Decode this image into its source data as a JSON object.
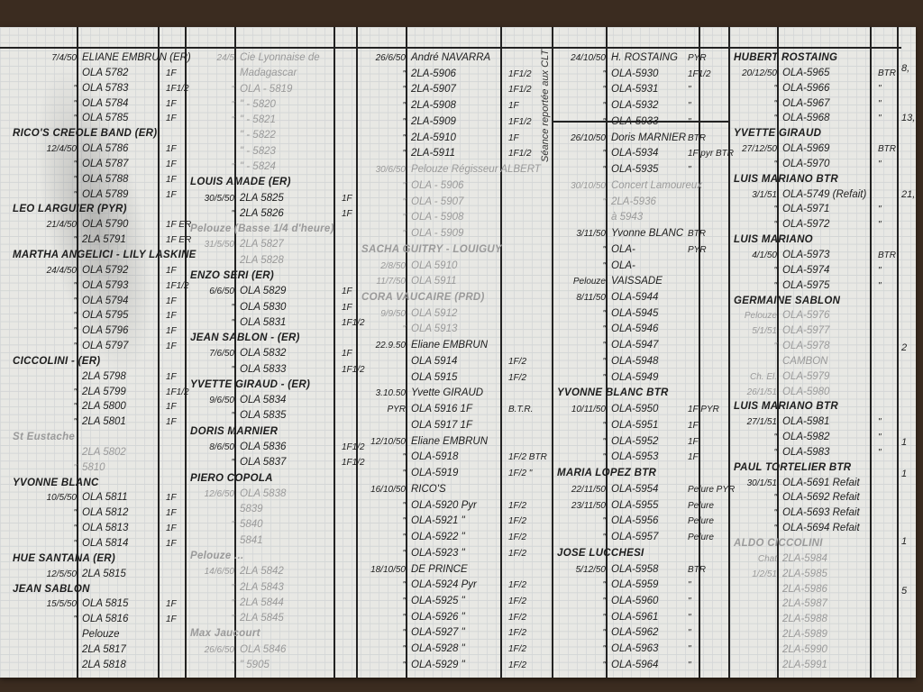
{
  "ledger": {
    "groups": [
      {
        "rows": [
          {
            "d": "7/4/50",
            "e": "ELIANE EMBRUN (ER)"
          },
          {
            "d": "",
            "e": "OLA 5782",
            "q": "1F"
          },
          {
            "d": "\"",
            "e": "OLA 5783",
            "q": "1F1/2"
          },
          {
            "d": "\"",
            "e": "OLA 5784",
            "q": "1F"
          },
          {
            "d": "\"",
            "e": "OLA 5785",
            "q": "1F"
          },
          {
            "h": "RICO'S CREOLE BAND (ER)"
          },
          {
            "d": "12/4/50",
            "e": "OLA 5786",
            "q": "1F"
          },
          {
            "d": "\"",
            "e": "OLA 5787",
            "q": "1F"
          },
          {
            "d": "\"",
            "e": "OLA 5788",
            "q": "1F"
          },
          {
            "d": "\"",
            "e": "OLA 5789",
            "q": "1F"
          },
          {
            "h": "LEO LARGUIER (PYR)"
          },
          {
            "d": "21/4/50",
            "e": "OLA 5790",
            "q": "1F ER"
          },
          {
            "d": "\"",
            "e": "2LA 5791",
            "q": "1F ER"
          },
          {
            "h": "MARTHA ANGELICI - LILY LASKINE"
          },
          {
            "d": "24/4/50",
            "e": "OLA 5792",
            "q": "1F"
          },
          {
            "d": "\"",
            "e": "OLA 5793",
            "q": "1F1/2"
          },
          {
            "d": "\"",
            "e": "OLA 5794",
            "q": "1F"
          },
          {
            "d": "\"",
            "e": "OLA 5795",
            "q": "1F"
          },
          {
            "d": "\"",
            "e": "OLA 5796",
            "q": "1F"
          },
          {
            "d": "\"",
            "e": "OLA 5797",
            "q": "1F"
          },
          {
            "h": "CICCOLINI - (ER)"
          },
          {
            "d": "",
            "e": "2LA 5798",
            "q": "1F"
          },
          {
            "d": "\"",
            "e": "2LA 5799",
            "q": "1F1/2"
          },
          {
            "d": "\"",
            "e": "2LA 5800",
            "q": "1F"
          },
          {
            "d": "\"",
            "e": "2LA 5801",
            "q": "1F"
          },
          {
            "h": "St Eustache",
            "faint": true
          },
          {
            "d": "",
            "e": "2LA 5802",
            "faint": true
          },
          {
            "d": "\"",
            "e": "5810",
            "faint": true
          },
          {
            "h": "YVONNE BLANC"
          },
          {
            "d": "10/5/50",
            "e": "OLA 5811",
            "q": "1F"
          },
          {
            "d": "\"",
            "e": "OLA 5812",
            "q": "1F"
          },
          {
            "d": "\"",
            "e": "OLA 5813",
            "q": "1F"
          },
          {
            "d": "\"",
            "e": "OLA 5814",
            "q": "1F"
          },
          {
            "h": "HUE SANTANA (ER)"
          },
          {
            "d": "12/5/50",
            "e": "2LA 5815"
          },
          {
            "h": "JEAN SABLON"
          },
          {
            "d": "15/5/50",
            "e": "OLA 5815",
            "q": "1F"
          },
          {
            "d": "\"",
            "e": "OLA 5816",
            "q": "1F"
          },
          {
            "d": "",
            "e": "Pelouze"
          },
          {
            "d": "",
            "e": "2LA 5817"
          },
          {
            "d": "",
            "e": "2LA 5818"
          }
        ]
      },
      {
        "rows": [
          {
            "d": "24/5",
            "e": "Cie Lyonnaise de",
            "faint": true
          },
          {
            "d": "",
            "e": "Madagascar",
            "faint": true
          },
          {
            "d": "\"",
            "e": "OLA - 5819",
            "faint": true
          },
          {
            "d": "\"",
            "e": "\" - 5820",
            "faint": true
          },
          {
            "d": "\"",
            "e": "\" - 5821",
            "faint": true
          },
          {
            "d": "",
            "e": "\" - 5822",
            "faint": true
          },
          {
            "d": "",
            "e": "\" - 5823",
            "faint": true
          },
          {
            "d": "\"",
            "e": "\" - 5824",
            "faint": true
          },
          {
            "h": "LOUIS AMADE (ER)"
          },
          {
            "d": "30/5/50",
            "e": "2LA 5825",
            "q": "1F"
          },
          {
            "d": "\"",
            "e": "2LA 5826",
            "q": "1F"
          },
          {
            "h": "Pelouze (Basse 1/4 d'heure)",
            "faint": true
          },
          {
            "d": "31/5/50",
            "e": "2LA 5827",
            "faint": true
          },
          {
            "d": "",
            "e": "2LA 5828",
            "faint": true
          },
          {
            "h": "ENZO SERI (ER)"
          },
          {
            "d": "6/6/50",
            "e": "OLA 5829",
            "q": "1F"
          },
          {
            "d": "\"",
            "e": "OLA 5830",
            "q": "1F"
          },
          {
            "d": "\"",
            "e": "OLA 5831",
            "q": "1F1/2"
          },
          {
            "h": "JEAN SABLON - (ER)"
          },
          {
            "d": "7/6/50",
            "e": "OLA 5832",
            "q": "1F"
          },
          {
            "d": "\"",
            "e": "OLA 5833",
            "q": "1F1/2"
          },
          {
            "h": "YVETTE GIRAUD - (ER)"
          },
          {
            "d": "9/6/50",
            "e": "OLA 5834"
          },
          {
            "d": "\"",
            "e": "OLA 5835"
          },
          {
            "h": "DORIS MARNIER"
          },
          {
            "d": "8/6/50",
            "e": "OLA 5836",
            "q": "1F1/2"
          },
          {
            "d": "\"",
            "e": "OLA 5837",
            "q": "1F1/2"
          },
          {
            "h": "PIERO COPOLA"
          },
          {
            "d": "12/6/50",
            "e": "OLA 5838",
            "faint": true
          },
          {
            "d": "",
            "e": "5839",
            "faint": true
          },
          {
            "d": "\"",
            "e": "5840",
            "faint": true
          },
          {
            "d": "",
            "e": "5841",
            "faint": true
          },
          {
            "h": "Pelouze ...",
            "faint": true
          },
          {
            "d": "14/6/50",
            "e": "2LA 5842",
            "faint": true
          },
          {
            "d": "\"",
            "e": "2LA 5843",
            "faint": true
          },
          {
            "d": "\"",
            "e": "2LA 5844",
            "faint": true
          },
          {
            "d": "\"",
            "e": "2LA 5845",
            "faint": true
          },
          {
            "h": "Max Jaucourt",
            "faint": true
          },
          {
            "d": "26/6/50",
            "e": "OLA 5846",
            "faint": true
          },
          {
            "d": "\"",
            "e": "\" 5905",
            "faint": true
          }
        ]
      },
      {
        "rows": [
          {
            "d": "26/6/50",
            "e": "André NAVARRA"
          },
          {
            "d": "\"",
            "e": "2LA-5906",
            "q": "1F1/2"
          },
          {
            "d": "\"",
            "e": "2LA-5907",
            "q": "1F1/2"
          },
          {
            "d": "\"",
            "e": "2LA-5908",
            "q": "1F"
          },
          {
            "d": "\"",
            "e": "2LA-5909",
            "q": "1F1/2"
          },
          {
            "d": "\"",
            "e": "2LA-5910",
            "q": "1F"
          },
          {
            "d": "\"",
            "e": "2LA-5911",
            "q": "1F1/2"
          },
          {
            "d": "30/6/50",
            "e": "Pelouze Régisseur ALBERT",
            "faint": true
          },
          {
            "d": "\"",
            "e": "OLA - 5906",
            "faint": true
          },
          {
            "d": "\"",
            "e": "OLA - 5907",
            "faint": true
          },
          {
            "d": "\"",
            "e": "OLA - 5908",
            "faint": true
          },
          {
            "d": "\"",
            "e": "OLA - 5909",
            "faint": true
          },
          {
            "h": "SACHA GUITRY - LOUIGUY",
            "faint": true
          },
          {
            "d": "2/8/50",
            "e": "OLA 5910",
            "faint": true
          },
          {
            "d": "11/7/50",
            "e": "OLA 5911",
            "faint": true
          },
          {
            "h": "CORA VAUCAIRE (PRD)",
            "faint": true
          },
          {
            "d": "9/9/50",
            "e": "OLA 5912",
            "faint": true
          },
          {
            "d": "\"",
            "e": "OLA 5913",
            "faint": true
          },
          {
            "d": "22.9.50",
            "e": "Eliane EMBRUN"
          },
          {
            "d": "",
            "e": "OLA 5914",
            "q": "1F/2"
          },
          {
            "d": "",
            "e": "OLA 5915",
            "q": "1F/2"
          },
          {
            "d": "3.10.50",
            "e": "Yvette GIRAUD"
          },
          {
            "d": "PYR",
            "e": "OLA 5916 1F",
            "q": "B.T.R."
          },
          {
            "d": "",
            "e": "OLA 5917 1F"
          },
          {
            "d": "12/10/50",
            "e": "Eliane EMBRUN"
          },
          {
            "d": "\"",
            "e": "OLA-5918",
            "q": "1F/2 BTR"
          },
          {
            "d": "\"",
            "e": "OLA-5919",
            "q": "1F/2 \""
          },
          {
            "d": "16/10/50",
            "e": "RICO'S"
          },
          {
            "d": "\"",
            "e": "OLA-5920 Pyr",
            "q": "1F/2"
          },
          {
            "d": "\"",
            "e": "OLA-5921 \"",
            "q": "1F/2"
          },
          {
            "d": "\"",
            "e": "OLA-5922 \"",
            "q": "1F/2"
          },
          {
            "d": "\"",
            "e": "OLA-5923 \"",
            "q": "1F/2"
          },
          {
            "d": "18/10/50",
            "e": "DE PRINCE"
          },
          {
            "d": "\"",
            "e": "OLA-5924 Pyr",
            "q": "1F/2"
          },
          {
            "d": "\"",
            "e": "OLA-5925 \"",
            "q": "1F/2"
          },
          {
            "d": "\"",
            "e": "OLA-5926 \"",
            "q": "1F/2"
          },
          {
            "d": "\"",
            "e": "OLA-5927 \"",
            "q": "1F/2"
          },
          {
            "d": "\"",
            "e": "OLA-5928 \"",
            "q": "1F/2"
          },
          {
            "d": "\"",
            "e": "OLA-5929 \"",
            "q": "1F/2"
          }
        ]
      },
      {
        "rows": [
          {
            "d": "24/10/50",
            "e": "H. ROSTAING",
            "q": "PYR"
          },
          {
            "d": "\"",
            "e": "OLA-5930",
            "q": "1F1/2"
          },
          {
            "d": "\"",
            "e": "OLA-5931",
            "q": "\""
          },
          {
            "d": "\"",
            "e": "OLA-5932",
            "q": "\""
          },
          {
            "d": "\"",
            "e": "OLA-5933",
            "q": "\""
          },
          {
            "d": "26/10/50",
            "e": "Doris MARNIER",
            "q": "BTR"
          },
          {
            "d": "\"",
            "e": "OLA-5934",
            "q": "1F pyr BTR"
          },
          {
            "d": "\"",
            "e": "OLA-5935",
            "q": "\""
          },
          {
            "d": "30/10/50",
            "e": "Concert Lamoureux",
            "faint": true
          },
          {
            "d": "\"",
            "e": "2LA-5936",
            "faint": true
          },
          {
            "d": "",
            "e": "à 5943",
            "faint": true
          },
          {
            "d": "3/11/50",
            "e": "Yvonne BLANC",
            "q": "BTR"
          },
          {
            "d": "\"",
            "e": "OLA-",
            "q": "PYR"
          },
          {
            "d": "\"",
            "e": "OLA-"
          },
          {
            "d": "Pelouze",
            "e": "VAISSADE"
          },
          {
            "d": "8/11/50",
            "e": "OLA-5944"
          },
          {
            "d": "\"",
            "e": "OLA-5945"
          },
          {
            "d": "\"",
            "e": "OLA-5946"
          },
          {
            "d": "\"",
            "e": "OLA-5947"
          },
          {
            "d": "\"",
            "e": "OLA-5948"
          },
          {
            "d": "\"",
            "e": "OLA-5949"
          },
          {
            "h": "YVONNE BLANC BTR"
          },
          {
            "d": "10/11/50",
            "e": "OLA-5950",
            "q": "1F PYR"
          },
          {
            "d": "\"",
            "e": "OLA-5951",
            "q": "1F"
          },
          {
            "d": "\"",
            "e": "OLA-5952",
            "q": "1F"
          },
          {
            "d": "\"",
            "e": "OLA-5953",
            "q": "1F"
          },
          {
            "h": "MARIA LOPEZ BTR"
          },
          {
            "d": "22/11/50",
            "e": "OLA-5954",
            "q": "Pelure PYR"
          },
          {
            "d": "23/11/50",
            "e": "OLA-5955",
            "q": "Pelure"
          },
          {
            "d": "\"",
            "e": "OLA-5956",
            "q": "Pelure"
          },
          {
            "d": "\"",
            "e": "OLA-5957",
            "q": "Pelure"
          },
          {
            "h": "JOSE LUCCHESI"
          },
          {
            "d": "5/12/50",
            "e": "OLA-5958",
            "q": "BTR"
          },
          {
            "d": "\"",
            "e": "OLA-5959",
            "q": "\""
          },
          {
            "d": "\"",
            "e": "OLA-5960",
            "q": "\""
          },
          {
            "d": "\"",
            "e": "OLA-5961",
            "q": "\""
          },
          {
            "d": "\"",
            "e": "OLA-5962",
            "q": "\""
          },
          {
            "d": "\"",
            "e": "OLA-5963",
            "q": "\""
          },
          {
            "d": "\"",
            "e": "OLA-5964",
            "q": "\""
          }
        ]
      },
      {
        "rows": [
          {
            "h": "HUBERT ROSTAING"
          },
          {
            "d": "20/12/50",
            "e": "OLA-5965",
            "q": "BTR"
          },
          {
            "d": "\"",
            "e": "OLA-5966",
            "q": "\""
          },
          {
            "d": "\"",
            "e": "OLA-5967",
            "q": "\""
          },
          {
            "d": "\"",
            "e": "OLA-5968",
            "q": "\""
          },
          {
            "h": "YVETTE GIRAUD"
          },
          {
            "d": "27/12/50",
            "e": "OLA-5969",
            "q": "BTR"
          },
          {
            "d": "\"",
            "e": "OLA-5970",
            "q": "\""
          },
          {
            "h": "LUIS MARIANO BTR"
          },
          {
            "d": "3/1/51",
            "e": "OLA-5749 (Refait)"
          },
          {
            "d": "\"",
            "e": "OLA-5971",
            "q": "\""
          },
          {
            "d": "\"",
            "e": "OLA-5972",
            "q": "\""
          },
          {
            "h": "LUIS MARIANO"
          },
          {
            "d": "4/1/50",
            "e": "OLA-5973",
            "q": "BTR"
          },
          {
            "d": "\"",
            "e": "OLA-5974",
            "q": "\""
          },
          {
            "d": "\"",
            "e": "OLA-5975",
            "q": "\""
          },
          {
            "h": "GERMAINE SABLON"
          },
          {
            "d": "Pelouze",
            "e": "OLA-5976",
            "faint": true
          },
          {
            "d": "5/1/51",
            "e": "OLA-5977",
            "faint": true
          },
          {
            "d": "\"",
            "e": "OLA-5978",
            "faint": true
          },
          {
            "d": "",
            "e": "CAMBON",
            "faint": true
          },
          {
            "d": "Ch. El.",
            "e": "OLA-5979",
            "faint": true
          },
          {
            "d": "26/1/51",
            "e": "OLA-5980",
            "faint": true
          },
          {
            "h": "LUIS MARIANO BTR"
          },
          {
            "d": "27/1/51",
            "e": "OLA-5981",
            "q": "\""
          },
          {
            "d": "\"",
            "e": "OLA-5982",
            "q": "\""
          },
          {
            "d": "\"",
            "e": "OLA-5983",
            "q": "\""
          },
          {
            "h": "PAUL TORTELIER BTR"
          },
          {
            "d": "30/1/51",
            "e": "OLA-5691 Refait"
          },
          {
            "d": "\"",
            "e": "OLA-5692 Refait"
          },
          {
            "d": "\"",
            "e": "OLA-5693 Refait"
          },
          {
            "d": "\"",
            "e": "OLA-5694 Refait"
          },
          {
            "h": "ALDO CICCOLINI",
            "faint": true
          },
          {
            "d": "Chat",
            "e": "2LA-5984",
            "faint": true
          },
          {
            "d": "1/2/51",
            "e": "2LA-5985",
            "faint": true
          },
          {
            "d": "",
            "e": "2LA-5986",
            "faint": true
          },
          {
            "d": "",
            "e": "2LA-5987",
            "faint": true
          },
          {
            "d": "",
            "e": "2LA-5988",
            "faint": true
          },
          {
            "d": "",
            "e": "2LA-5989",
            "faint": true
          },
          {
            "d": "",
            "e": "2LA-5990",
            "faint": true
          },
          {
            "d": "",
            "e": "2LA-5991",
            "faint": true
          }
        ]
      }
    ],
    "vertical_note": "Séance reportée aux CLT",
    "margin_numbers": [
      "8,",
      "13,",
      "21,",
      "2",
      "5",
      "1",
      "1",
      "1"
    ]
  }
}
